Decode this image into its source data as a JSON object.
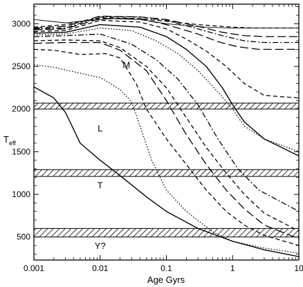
{
  "chart_data": {
    "type": "line",
    "title": "",
    "xlabel": "Age Gyrs",
    "ylabel": "T",
    "ylabel_sub": "eff",
    "x_scale": "log",
    "xlim": [
      0.001,
      10
    ],
    "ylim": [
      230,
      3230
    ],
    "x_ticks": [
      0.001,
      0.01,
      0.1,
      1,
      10
    ],
    "x_tick_labels": [
      "0.001",
      "0.01",
      "0.1",
      "1",
      "10"
    ],
    "y_ticks": [
      500,
      1000,
      1500,
      2000,
      2500,
      3000
    ],
    "y_tick_labels": [
      "500",
      "1000",
      "1500",
      "2000",
      "2500",
      "3000"
    ],
    "grid": false,
    "legend": "none",
    "bands": [
      {
        "y_from": 2000,
        "y_to": 2070
      },
      {
        "y_from": 1210,
        "y_to": 1290
      },
      {
        "y_from": 500,
        "y_to": 600
      }
    ],
    "region_labels": [
      {
        "text": "M",
        "x": 0.025,
        "y": 2480
      },
      {
        "text": "L",
        "x": 0.01,
        "y": 1740
      },
      {
        "text": "T",
        "x": 0.01,
        "y": 1070
      },
      {
        "text": "Y?",
        "x": 0.01,
        "y": 360
      }
    ],
    "series": [
      {
        "style": "solid-thin",
        "x": [
          0.001,
          0.003,
          0.007,
          0.015,
          0.04,
          0.1,
          0.4,
          1,
          10
        ],
        "y": [
          3050,
          3010,
          3040,
          3060,
          3050,
          3000,
          2960,
          2950,
          2950
        ]
      },
      {
        "style": "dash",
        "x": [
          0.001,
          0.003,
          0.01,
          0.04,
          0.1,
          0.3,
          1,
          2,
          10
        ],
        "y": [
          2960,
          2990,
          3070,
          3060,
          3030,
          2990,
          2960,
          2950,
          2950
        ]
      },
      {
        "style": "longdash",
        "x": [
          0.001,
          0.003,
          0.01,
          0.04,
          0.1,
          0.3,
          0.7,
          1.5,
          3,
          10
        ],
        "y": [
          2950,
          2970,
          3090,
          3080,
          3050,
          2970,
          2900,
          2860,
          2850,
          2850
        ]
      },
      {
        "style": "dashdot",
        "x": [
          0.001,
          0.003,
          0.01,
          0.04,
          0.1,
          0.3,
          0.7,
          1.5,
          3,
          10
        ],
        "y": [
          2940,
          2950,
          3080,
          3080,
          3040,
          2940,
          2860,
          2800,
          2780,
          2780
        ]
      },
      {
        "style": "longdash",
        "x": [
          0.001,
          0.003,
          0.01,
          0.04,
          0.1,
          0.3,
          0.6,
          1.2,
          2.5,
          10
        ],
        "y": [
          2930,
          2940,
          3060,
          3060,
          2990,
          2880,
          2790,
          2730,
          2700,
          2700
        ]
      },
      {
        "style": "dash",
        "x": [
          0.001,
          0.003,
          0.01,
          0.04,
          0.1,
          0.2,
          0.4,
          0.8,
          1.5,
          3,
          10
        ],
        "y": [
          2910,
          2920,
          3040,
          3020,
          2940,
          2820,
          2680,
          2500,
          2300,
          2160,
          2130
        ]
      },
      {
        "style": "solid",
        "x": [
          0.001,
          0.003,
          0.01,
          0.04,
          0.1,
          0.2,
          0.4,
          0.7,
          1,
          1.5,
          3,
          10
        ],
        "y": [
          2890,
          2900,
          2990,
          2960,
          2850,
          2700,
          2500,
          2250,
          2050,
          1850,
          1650,
          1450
        ]
      },
      {
        "style": "dotted",
        "x": [
          0.001,
          0.003,
          0.01,
          0.03,
          0.07,
          0.15,
          0.3,
          0.6,
          1,
          1.5,
          3,
          10
        ],
        "y": [
          2870,
          2880,
          2950,
          2920,
          2800,
          2650,
          2450,
          2200,
          2000,
          1800,
          1650,
          1500
        ]
      },
      {
        "style": "dashdot",
        "x": [
          0.001,
          0.003,
          0.01,
          0.03,
          0.07,
          0.15,
          0.3,
          0.6,
          1.2,
          2.5,
          10
        ],
        "y": [
          2850,
          2860,
          2880,
          2760,
          2580,
          2350,
          2050,
          1650,
          1300,
          1050,
          800
        ]
      },
      {
        "style": "dash",
        "x": [
          0.001,
          0.003,
          0.01,
          0.02,
          0.05,
          0.1,
          0.2,
          0.4,
          0.8,
          1.5,
          3,
          10
        ],
        "y": [
          2800,
          2810,
          2800,
          2720,
          2500,
          2250,
          1900,
          1550,
          1250,
          1000,
          780,
          570
        ]
      },
      {
        "style": "longdash",
        "x": [
          0.001,
          0.003,
          0.01,
          0.02,
          0.05,
          0.1,
          0.2,
          0.4,
          0.8,
          1.5,
          3,
          10
        ],
        "y": [
          2770,
          2780,
          2780,
          2690,
          2450,
          2100,
          1700,
          1350,
          1050,
          830,
          640,
          480
        ]
      },
      {
        "style": "dash",
        "x": [
          0.001,
          0.002,
          0.005,
          0.012,
          0.02,
          0.035,
          0.05,
          0.1,
          0.2,
          0.4,
          0.8,
          1.5,
          3,
          10
        ],
        "y": [
          2700,
          2690,
          2640,
          2650,
          2600,
          2300,
          2000,
          1650,
          1350,
          1050,
          800,
          640,
          520,
          400
        ]
      },
      {
        "style": "dotted",
        "x": [
          0.001,
          0.002,
          0.005,
          0.01,
          0.02,
          0.03,
          0.04,
          0.06,
          0.1,
          0.2,
          0.5,
          1,
          3,
          10
        ],
        "y": [
          2520,
          2490,
          2420,
          2370,
          2230,
          2080,
          1800,
          1400,
          1050,
          800,
          560,
          450,
          370,
          310
        ]
      },
      {
        "style": "solid",
        "x": [
          0.001,
          0.002,
          0.003,
          0.005,
          0.01,
          0.02,
          0.05,
          0.1,
          0.3,
          1,
          3,
          10
        ],
        "y": [
          2260,
          2130,
          1960,
          1600,
          1400,
          1220,
          970,
          800,
          600,
          450,
          350,
          270
        ]
      }
    ]
  }
}
